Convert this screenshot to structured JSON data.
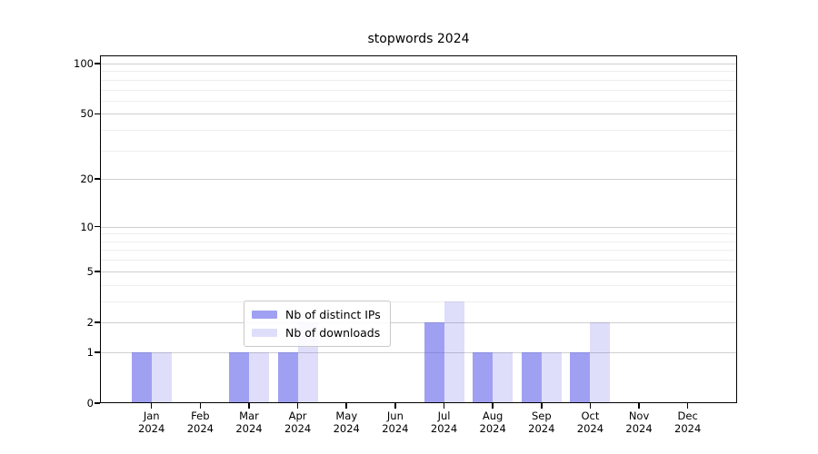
{
  "chart_data": {
    "type": "bar",
    "title": "stopwords 2024",
    "x_categories": [
      "Jan",
      "Feb",
      "Mar",
      "Apr",
      "May",
      "Jun",
      "Jul",
      "Aug",
      "Sep",
      "Oct",
      "Nov",
      "Dec"
    ],
    "x_year": "2024",
    "series": [
      {
        "name": "Nb of distinct IPs",
        "color": "rgba(92,92,232,0.58)",
        "values": [
          1,
          0,
          1,
          1,
          0,
          0,
          2,
          1,
          1,
          1,
          0,
          0
        ]
      },
      {
        "name": "Nb of downloads",
        "color": "rgba(92,92,232,0.20)",
        "values": [
          1,
          0,
          1,
          2,
          0,
          0,
          3,
          1,
          1,
          2,
          0,
          0
        ]
      }
    ],
    "y_scale": "log1p",
    "y_major_ticks": [
      0,
      1,
      2,
      5,
      10,
      20,
      50,
      100
    ],
    "y_minor_ticks": [
      3,
      4,
      6,
      7,
      8,
      9,
      30,
      40,
      60,
      70,
      80,
      90
    ],
    "ylim": [
      0,
      112
    ],
    "grid": "on",
    "legend_position": "lower center"
  },
  "colors": {
    "bar_distinct_ips": "rgba(92,92,232,0.58)",
    "bar_downloads": "rgba(92,92,232,0.20)",
    "major_gridline": "#cfcfcf",
    "minor_gridline": "#eeeeee",
    "axis_spine": "#000000",
    "legend_border": "#c9c9c9",
    "text": "#000000"
  }
}
